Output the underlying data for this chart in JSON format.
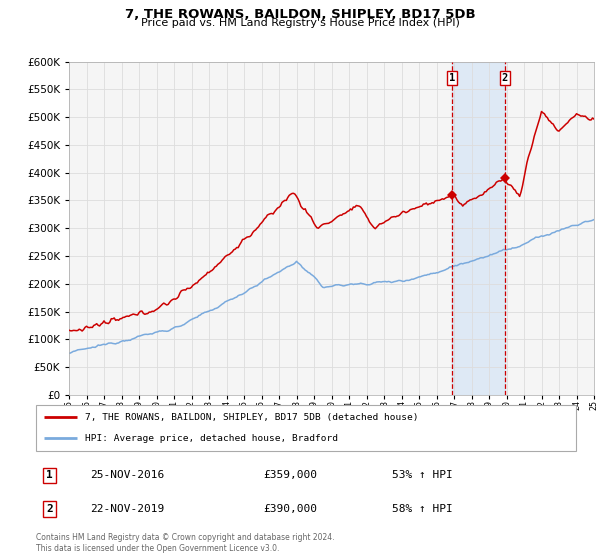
{
  "title": "7, THE ROWANS, BAILDON, SHIPLEY, BD17 5DB",
  "subtitle": "Price paid vs. HM Land Registry's House Price Index (HPI)",
  "legend_line1": "7, THE ROWANS, BAILDON, SHIPLEY, BD17 5DB (detached house)",
  "legend_line2": "HPI: Average price, detached house, Bradford",
  "sale1_date": "25-NOV-2016",
  "sale1_price": "£359,000",
  "sale1_hpi": "53% ↑ HPI",
  "sale2_date": "22-NOV-2019",
  "sale2_price": "£390,000",
  "sale2_hpi": "58% ↑ HPI",
  "footer": "Contains HM Land Registry data © Crown copyright and database right 2024.\nThis data is licensed under the Open Government Licence v3.0.",
  "red_color": "#cc0000",
  "blue_color": "#7aaadd",
  "sale1_x": 2016.9,
  "sale2_x": 2019.9,
  "sale1_y": 359000,
  "sale2_y": 390000,
  "ylim": [
    0,
    600000
  ],
  "xlim_start": 1995,
  "xlim_end": 2025,
  "plot_bg": "#f5f5f5",
  "grid_color": "#dddddd",
  "shade_color": "#cce0f5"
}
